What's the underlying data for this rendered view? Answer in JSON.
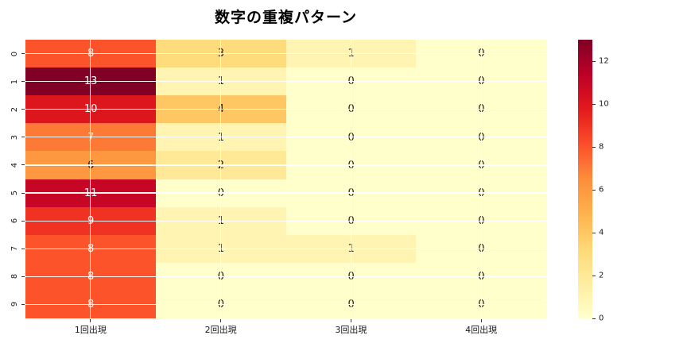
{
  "title": "数字の重複パターン",
  "chart_data": {
    "type": "heatmap",
    "title": "数字の重複パターン",
    "row_labels": [
      "0",
      "1",
      "2",
      "3",
      "4",
      "5",
      "6",
      "7",
      "8",
      "9"
    ],
    "col_labels": [
      "1回出現",
      "2回出現",
      "3回出現",
      "4回出現"
    ],
    "values": [
      [
        8,
        3,
        1,
        0
      ],
      [
        13,
        1,
        0,
        0
      ],
      [
        10,
        4,
        0,
        0
      ],
      [
        7,
        1,
        0,
        0
      ],
      [
        6,
        2,
        0,
        0
      ],
      [
        11,
        0,
        0,
        0
      ],
      [
        9,
        1,
        0,
        0
      ],
      [
        8,
        1,
        1,
        0
      ],
      [
        8,
        0,
        0,
        0
      ],
      [
        8,
        0,
        0,
        0
      ]
    ],
    "vmin": 0,
    "vmax": 13,
    "colormap_name": "YlOrRd",
    "colormap_anchors": [
      "#ffffcc",
      "#ffeda0",
      "#fed976",
      "#feb24c",
      "#fd8d3c",
      "#fc4e2a",
      "#e31a1c",
      "#bd0026",
      "#800026"
    ],
    "colorbar_ticks": [
      0,
      2,
      4,
      6,
      8,
      10,
      12
    ],
    "grid": true,
    "legend_position": "right",
    "annotation_color_dark": "#262626",
    "annotation_color_light": "#ffffff"
  }
}
